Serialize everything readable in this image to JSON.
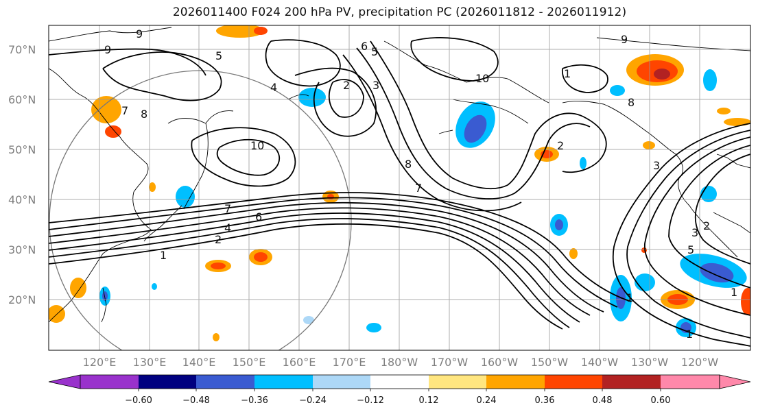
{
  "title": "2026011400 F024 200 hPa PV, precipitation PC (2026011812 - 2026011912)",
  "lat_labels": [
    "70°N",
    "60°N",
    "50°N",
    "40°N",
    "30°N",
    "20°N"
  ],
  "lon_labels": [
    "120°E",
    "130°E",
    "140°E",
    "150°E",
    "160°E",
    "170°E",
    "180°W",
    "170°W",
    "160°W",
    "150°W",
    "140°W",
    "130°W",
    "120°W"
  ],
  "colorbar": {
    "colors": [
      "#9932cc",
      "#000080",
      "#3a5bd1",
      "#00bfff",
      "#add8f7",
      "#ffffff",
      "#ffe680",
      "#ffa500",
      "#ff4500",
      "#b22222",
      "#ff88aa"
    ],
    "extend_low_color": "#9932cc",
    "extend_high_color": "#ff88aa",
    "tick_labels": [
      "−0.60",
      "−0.48",
      "−0.36",
      "−0.24",
      "−0.12",
      "0.12",
      "0.24",
      "0.36",
      "0.48",
      "0.60"
    ]
  },
  "contour_labels": [
    "9",
    "9",
    "5",
    "6",
    "5",
    "4",
    "2",
    "3",
    "10",
    "1",
    "7",
    "8",
    "10",
    "9",
    "2",
    "8",
    "7",
    "6",
    "7",
    "4",
    "2",
    "1",
    "1",
    "8",
    "3",
    "2",
    "3",
    "5",
    "1",
    "1"
  ],
  "map": {
    "grid": true,
    "coastlines": true,
    "range_ring": true
  }
}
